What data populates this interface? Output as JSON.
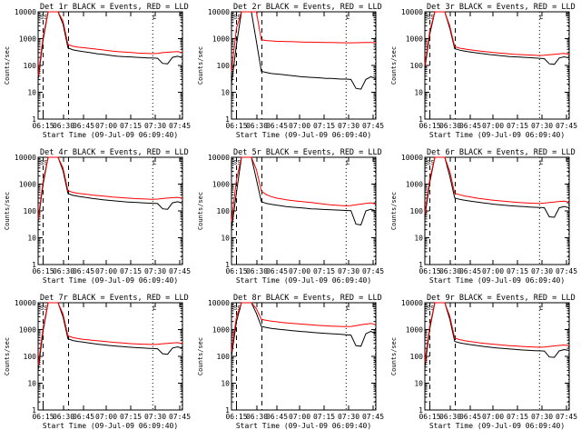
{
  "figure": {
    "colors": {
      "events": "#000000",
      "lld": "#ff0000",
      "axes": "#000000",
      "background": "#ffffff"
    }
  },
  "chart_data": [
    {
      "type": "line",
      "title": "Det 1r BLACK = Events, RED = LLD",
      "xlabel": "Start Time (09-Jul-09 06:09:40)",
      "ylabel": "Counts/sec",
      "xticks": [
        "06:15",
        "06:30",
        "06:45",
        "07:00",
        "07:15",
        "07:30",
        "07:45"
      ],
      "yticks": [
        "1",
        "10",
        "100",
        "1000",
        "10000"
      ],
      "yscale": "log",
      "ylim": [
        1,
        10000
      ],
      "marker_labels": [
        "SS",
        "L"
      ],
      "series": [
        {
          "role": "events",
          "values": [
            30,
            900,
            10000,
            10000,
            10000,
            3500,
            450,
            380,
            350,
            330,
            310,
            290,
            270,
            260,
            245,
            230,
            220,
            215,
            210,
            205,
            200,
            195,
            190,
            190,
            185,
            120,
            115,
            200,
            220,
            200
          ]
        },
        {
          "role": "lld",
          "values": [
            40,
            1200,
            10000,
            10000,
            10000,
            4500,
            600,
            520,
            480,
            460,
            440,
            420,
            400,
            380,
            360,
            340,
            330,
            320,
            310,
            300,
            290,
            285,
            280,
            275,
            280,
            300,
            310,
            320,
            330,
            300
          ]
        }
      ]
    },
    {
      "type": "line",
      "title": "Det 2r BLACK = Events, RED = LLD",
      "xlabel": "Start Time (09-Jul-09 06:09:40)",
      "ylabel": "Counts/sec",
      "xticks": [
        "06:15",
        "06:30",
        "06:45",
        "07:00",
        "07:15",
        "07:30",
        "07:45"
      ],
      "yticks": [
        "1",
        "10",
        "100",
        "1000",
        "10000"
      ],
      "yscale": "log",
      "ylim": [
        1,
        10000
      ],
      "marker_labels": [
        "SS",
        "L"
      ],
      "series": [
        {
          "role": "events",
          "values": [
            20,
            600,
            10000,
            10000,
            10000,
            800,
            60,
            55,
            50,
            48,
            46,
            44,
            42,
            40,
            38,
            37,
            36,
            35,
            34,
            33,
            33,
            32,
            31,
            31,
            30,
            14,
            13,
            30,
            38,
            32
          ]
        },
        {
          "role": "lld",
          "values": [
            60,
            2500,
            10000,
            10000,
            10000,
            10000,
            900,
            850,
            820,
            800,
            790,
            780,
            770,
            760,
            750,
            740,
            735,
            730,
            725,
            720,
            715,
            710,
            705,
            700,
            700,
            705,
            710,
            715,
            720,
            700
          ]
        }
      ]
    },
    {
      "type": "line",
      "title": "Det 3r BLACK = Events, RED = LLD",
      "xlabel": "Start Time (09-Jul-09 06:09:40)",
      "ylabel": "Counts/sec",
      "xticks": [
        "06:15",
        "06:30",
        "06:45",
        "07:00",
        "07:15",
        "07:30",
        "07:45"
      ],
      "yticks": [
        "1",
        "10",
        "100",
        "1000",
        "10000"
      ],
      "yscale": "log",
      "ylim": [
        1,
        10000
      ],
      "marker_labels": [
        "SS",
        "L"
      ],
      "series": [
        {
          "role": "events",
          "values": [
            80,
            1500,
            10000,
            10000,
            10000,
            2500,
            420,
            370,
            340,
            320,
            300,
            285,
            270,
            255,
            245,
            235,
            225,
            215,
            210,
            205,
            200,
            195,
            190,
            185,
            180,
            115,
            110,
            190,
            210,
            190
          ]
        },
        {
          "role": "lld",
          "values": [
            100,
            2000,
            10000,
            10000,
            10000,
            3000,
            500,
            440,
            410,
            385,
            365,
            345,
            330,
            315,
            300,
            290,
            280,
            270,
            260,
            255,
            250,
            245,
            240,
            235,
            240,
            250,
            260,
            270,
            280,
            260
          ]
        }
      ]
    },
    {
      "type": "line",
      "title": "Det 4r BLACK = Events, RED = LLD",
      "xlabel": "Start Time (09-Jul-09 06:09:40)",
      "ylabel": "Counts/sec",
      "xticks": [
        "06:15",
        "06:30",
        "06:45",
        "07:00",
        "07:15",
        "07:30",
        "07:45"
      ],
      "yticks": [
        "1",
        "10",
        "100",
        "1000",
        "10000"
      ],
      "yscale": "log",
      "ylim": [
        1,
        10000
      ],
      "marker_labels": [
        "SS",
        "L"
      ],
      "series": [
        {
          "role": "events",
          "values": [
            40,
            1000,
            10000,
            10000,
            10000,
            3200,
            440,
            380,
            350,
            330,
            310,
            290,
            275,
            262,
            250,
            240,
            230,
            222,
            215,
            210,
            205,
            200,
            195,
            192,
            188,
            120,
            115,
            200,
            220,
            200
          ]
        },
        {
          "role": "lld",
          "values": [
            50,
            1300,
            10000,
            10000,
            10000,
            4000,
            560,
            490,
            455,
            430,
            410,
            390,
            375,
            360,
            345,
            330,
            320,
            310,
            300,
            292,
            285,
            280,
            275,
            270,
            275,
            290,
            300,
            310,
            320,
            295
          ]
        }
      ]
    },
    {
      "type": "line",
      "title": "Det 5r BLACK = Events, RED = LLD",
      "xlabel": "Start Time (09-Jul-09 06:09:40)",
      "ylabel": "Counts/sec",
      "xticks": [
        "06:15",
        "06:30",
        "06:45",
        "07:00",
        "07:15",
        "07:30",
        "07:45"
      ],
      "yticks": [
        "1",
        "10",
        "100",
        "1000",
        "10000"
      ],
      "yscale": "log",
      "ylim": [
        1,
        10000
      ],
      "marker_labels": [
        "SS",
        "L"
      ],
      "series": [
        {
          "role": "events",
          "values": [
            20,
            500,
            10000,
            10000,
            10000,
            1500,
            220,
            190,
            175,
            165,
            155,
            145,
            140,
            135,
            130,
            125,
            120,
            118,
            115,
            112,
            110,
            108,
            106,
            104,
            102,
            32,
            30,
            100,
            115,
            100
          ]
        },
        {
          "role": "lld",
          "values": [
            40,
            1500,
            10000,
            10000,
            10000,
            3500,
            550,
            400,
            340,
            300,
            280,
            260,
            245,
            235,
            225,
            215,
            205,
            195,
            185,
            175,
            168,
            162,
            158,
            155,
            158,
            170,
            180,
            190,
            200,
            180
          ]
        }
      ]
    },
    {
      "type": "line",
      "title": "Det 6r BLACK = Events, RED = LLD",
      "xlabel": "Start Time (09-Jul-09 06:09:40)",
      "ylabel": "Counts/sec",
      "xticks": [
        "06:15",
        "06:30",
        "06:45",
        "07:00",
        "07:15",
        "07:30",
        "07:45"
      ],
      "yticks": [
        "1",
        "10",
        "100",
        "1000",
        "10000"
      ],
      "yscale": "log",
      "ylim": [
        1,
        10000
      ],
      "marker_labels": [
        "SS",
        "L"
      ],
      "series": [
        {
          "role": "events",
          "values": [
            60,
            1200,
            10000,
            10000,
            10000,
            2000,
            300,
            270,
            250,
            235,
            220,
            208,
            196,
            186,
            177,
            170,
            163,
            157,
            152,
            148,
            144,
            140,
            137,
            134,
            131,
            60,
            58,
            130,
            145,
            130
          ]
        },
        {
          "role": "lld",
          "values": [
            80,
            1600,
            10000,
            10000,
            10000,
            3000,
            450,
            400,
            360,
            335,
            310,
            290,
            275,
            260,
            248,
            238,
            228,
            220,
            212,
            205,
            200,
            196,
            192,
            190,
            195,
            205,
            215,
            225,
            230,
            210
          ]
        }
      ]
    },
    {
      "type": "line",
      "title": "Det 7r BLACK = Events, RED = LLD",
      "xlabel": "Start Time (09-Jul-09 06:09:40)",
      "ylabel": "Counts/sec",
      "xticks": [
        "06:15",
        "06:30",
        "06:45",
        "07:00",
        "07:15",
        "07:30",
        "07:45"
      ],
      "yticks": [
        "1",
        "10",
        "100",
        "1000",
        "10000"
      ],
      "yscale": "log",
      "ylim": [
        1,
        10000
      ],
      "marker_labels": [
        "SS",
        "L"
      ],
      "series": [
        {
          "role": "events",
          "values": [
            30,
            900,
            10000,
            10000,
            10000,
            3000,
            450,
            390,
            360,
            340,
            320,
            300,
            285,
            270,
            258,
            248,
            238,
            230,
            222,
            216,
            210,
            205,
            200,
            196,
            192,
            125,
            120,
            205,
            225,
            205
          ]
        },
        {
          "role": "lld",
          "values": [
            45,
            1200,
            10000,
            10000,
            10000,
            3800,
            580,
            500,
            460,
            435,
            415,
            395,
            380,
            365,
            350,
            335,
            325,
            315,
            305,
            297,
            290,
            285,
            280,
            275,
            280,
            295,
            305,
            315,
            325,
            300
          ]
        }
      ]
    },
    {
      "type": "line",
      "title": "Det 8r BLACK = Events, RED = LLD",
      "xlabel": "Start Time (09-Jul-09 06:09:40)",
      "ylabel": "Counts/sec",
      "xticks": [
        "06:15",
        "06:30",
        "06:45",
        "07:00",
        "07:15",
        "07:30",
        "07:45"
      ],
      "yticks": [
        "1",
        "10",
        "100",
        "1000",
        "10000"
      ],
      "yscale": "log",
      "ylim": [
        1,
        10000
      ],
      "marker_labels": [
        "SS",
        "L"
      ],
      "series": [
        {
          "role": "events",
          "values": [
            100,
            2000,
            10000,
            10000,
            10000,
            4000,
            1300,
            1200,
            1100,
            1050,
            1000,
            960,
            920,
            880,
            850,
            820,
            790,
            760,
            740,
            720,
            700,
            680,
            660,
            640,
            620,
            250,
            240,
            700,
            850,
            700
          ]
        },
        {
          "role": "lld",
          "values": [
            150,
            3000,
            10000,
            10000,
            10000,
            6000,
            2400,
            2200,
            2050,
            1950,
            1850,
            1780,
            1720,
            1660,
            1600,
            1550,
            1500,
            1450,
            1410,
            1380,
            1350,
            1320,
            1300,
            1280,
            1300,
            1400,
            1500,
            1600,
            1700,
            1500
          ]
        }
      ]
    },
    {
      "type": "line",
      "title": "Det 9r BLACK = Events, RED = LLD",
      "xlabel": "Start Time (09-Jul-09 06:09:40)",
      "ylabel": "Counts/sec",
      "xticks": [
        "06:15",
        "06:30",
        "06:45",
        "07:00",
        "07:15",
        "07:30",
        "07:45"
      ],
      "yticks": [
        "1",
        "10",
        "100",
        "1000",
        "10000"
      ],
      "yscale": "log",
      "ylim": [
        1,
        10000
      ],
      "marker_labels": [
        "SS",
        "L"
      ],
      "series": [
        {
          "role": "events",
          "values": [
            40,
            1100,
            10000,
            10000,
            10000,
            2500,
            360,
            320,
            295,
            275,
            260,
            245,
            232,
            220,
            210,
            202,
            195,
            188,
            182,
            177,
            172,
            168,
            164,
            161,
            158,
            95,
            92,
            160,
            180,
            165
          ]
        },
        {
          "role": "lld",
          "values": [
            60,
            1400,
            10000,
            10000,
            10000,
            3200,
            480,
            420,
            385,
            360,
            340,
            320,
            305,
            292,
            280,
            270,
            260,
            252,
            245,
            238,
            232,
            227,
            222,
            218,
            222,
            235,
            245,
            255,
            265,
            245
          ]
        }
      ]
    }
  ]
}
